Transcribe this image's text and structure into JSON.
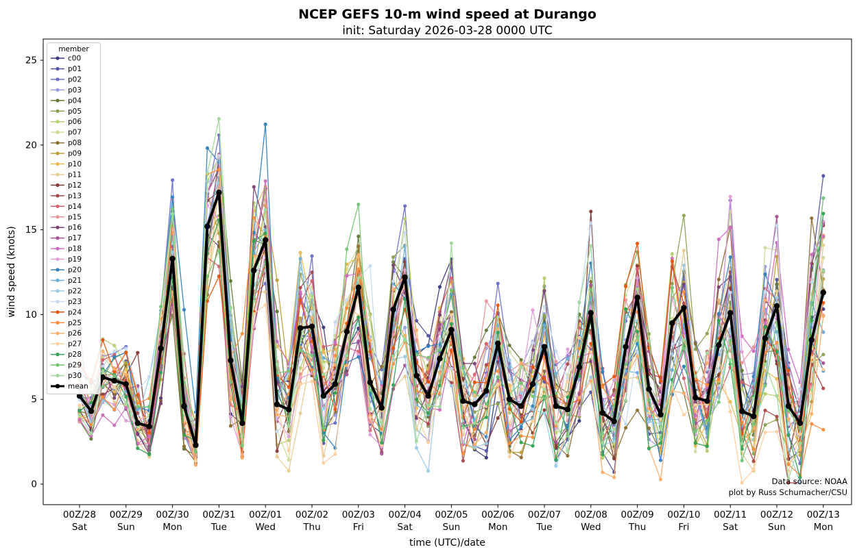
{
  "figure": {
    "background": "#ffffff"
  },
  "chart_data": {
    "type": "line",
    "title": "NCEP GEFS 10-m wind speed at Durango",
    "subtitle": "init: Saturday 2026-03-28 0000 UTC",
    "xlabel": "time (UTC)/date",
    "ylabel": "wind speed (knots)",
    "ylim": [
      -1.2,
      26.3
    ],
    "yticks": [
      0,
      5,
      10,
      15,
      20,
      25
    ],
    "x_step_hours": 6,
    "n_points": 65,
    "xticks": [
      {
        "utc": "00Z/28",
        "day": "Sat"
      },
      {
        "utc": "00Z/29",
        "day": "Sun"
      },
      {
        "utc": "00Z/30",
        "day": "Mon"
      },
      {
        "utc": "00Z/31",
        "day": "Tue"
      },
      {
        "utc": "00Z/01",
        "day": "Wed"
      },
      {
        "utc": "00Z/02",
        "day": "Thu"
      },
      {
        "utc": "00Z/03",
        "day": "Fri"
      },
      {
        "utc": "00Z/04",
        "day": "Sat"
      },
      {
        "utc": "00Z/05",
        "day": "Sun"
      },
      {
        "utc": "00Z/06",
        "day": "Mon"
      },
      {
        "utc": "00Z/07",
        "day": "Tue"
      },
      {
        "utc": "00Z/08",
        "day": "Wed"
      },
      {
        "utc": "00Z/09",
        "day": "Thu"
      },
      {
        "utc": "00Z/10",
        "day": "Fri"
      },
      {
        "utc": "00Z/11",
        "day": "Sat"
      },
      {
        "utc": "00Z/12",
        "day": "Sun"
      },
      {
        "utc": "00Z/13",
        "day": "Mon"
      }
    ],
    "mean": [
      5.2,
      4.3,
      6.3,
      6.1,
      5.9,
      3.6,
      3.4,
      8.0,
      13.3,
      4.6,
      2.3,
      15.2,
      17.2,
      7.3,
      3.6,
      12.6,
      14.4,
      4.7,
      4.4,
      9.2,
      9.3,
      5.2,
      5.9,
      9.0,
      11.6,
      6.0,
      4.5,
      10.3,
      12.2,
      6.4,
      5.2,
      7.4,
      9.1,
      4.9,
      4.7,
      5.5,
      8.3,
      5.0,
      4.6,
      5.9,
      8.1,
      4.6,
      4.4,
      6.9,
      10.1,
      4.2,
      3.7,
      8.1,
      11.0,
      5.6,
      4.1,
      9.5,
      10.4,
      5.1,
      4.9,
      8.2,
      10.1,
      4.3,
      4.0,
      8.6,
      10.5,
      4.6,
      3.6,
      8.5,
      11.3
    ],
    "spread": [
      1.5,
      1.2,
      1.5,
      1.6,
      1.7,
      1.3,
      1.4,
      2.5,
      3.4,
      2.2,
      1.6,
      3.4,
      3.8,
      2.9,
      2.0,
      3.4,
      3.2,
      2.5,
      2.5,
      3.2,
      3.2,
      2.8,
      3.0,
      3.2,
      3.8,
      3.0,
      2.5,
      3.4,
      3.6,
      3.0,
      2.8,
      3.0,
      3.6,
      2.6,
      2.5,
      2.8,
      3.2,
      2.6,
      2.5,
      2.8,
      3.4,
      2.6,
      2.6,
      3.2,
      3.8,
      2.6,
      2.4,
      3.6,
      4.2,
      3.0,
      2.6,
      3.8,
      4.4,
      3.0,
      2.8,
      3.6,
      4.4,
      3.0,
      2.8,
      3.8,
      4.8,
      3.2,
      2.8,
      4.0,
      5.0
    ],
    "members": [
      {
        "name": "c00",
        "color": "#393b79"
      },
      {
        "name": "p01",
        "color": "#5254a3"
      },
      {
        "name": "p02",
        "color": "#6b6ecf"
      },
      {
        "name": "p03",
        "color": "#9c9ede"
      },
      {
        "name": "p04",
        "color": "#637939"
      },
      {
        "name": "p05",
        "color": "#8ca252"
      },
      {
        "name": "p06",
        "color": "#b5cf6b"
      },
      {
        "name": "p07",
        "color": "#cedb9c"
      },
      {
        "name": "p08",
        "color": "#8c6d31"
      },
      {
        "name": "p09",
        "color": "#bd9e39"
      },
      {
        "name": "p10",
        "color": "#e7ba52"
      },
      {
        "name": "p11",
        "color": "#e7cb94"
      },
      {
        "name": "p12",
        "color": "#843c39"
      },
      {
        "name": "p13",
        "color": "#ad494a"
      },
      {
        "name": "p14",
        "color": "#d6616b"
      },
      {
        "name": "p15",
        "color": "#e7969c"
      },
      {
        "name": "p16",
        "color": "#7b4173"
      },
      {
        "name": "p17",
        "color": "#a55194"
      },
      {
        "name": "p18",
        "color": "#ce6dbd"
      },
      {
        "name": "p19",
        "color": "#de9ed6"
      },
      {
        "name": "p20",
        "color": "#3182bd"
      },
      {
        "name": "p21",
        "color": "#6baed6"
      },
      {
        "name": "p22",
        "color": "#9ecae1"
      },
      {
        "name": "p23",
        "color": "#c6dbef"
      },
      {
        "name": "p24",
        "color": "#e6550d"
      },
      {
        "name": "p25",
        "color": "#fd8d3c"
      },
      {
        "name": "p26",
        "color": "#fdae6b"
      },
      {
        "name": "p27",
        "color": "#fdd0a2"
      },
      {
        "name": "p28",
        "color": "#31a354"
      },
      {
        "name": "p29",
        "color": "#74c476"
      },
      {
        "name": "p30",
        "color": "#a1d99b"
      },
      {
        "name": "mean",
        "color": "#000000"
      }
    ]
  },
  "legend": {
    "title": "member"
  },
  "annotations": {
    "data_source": "Data source: NOAA",
    "credit": "plot by Russ Schumacher/CSU"
  }
}
